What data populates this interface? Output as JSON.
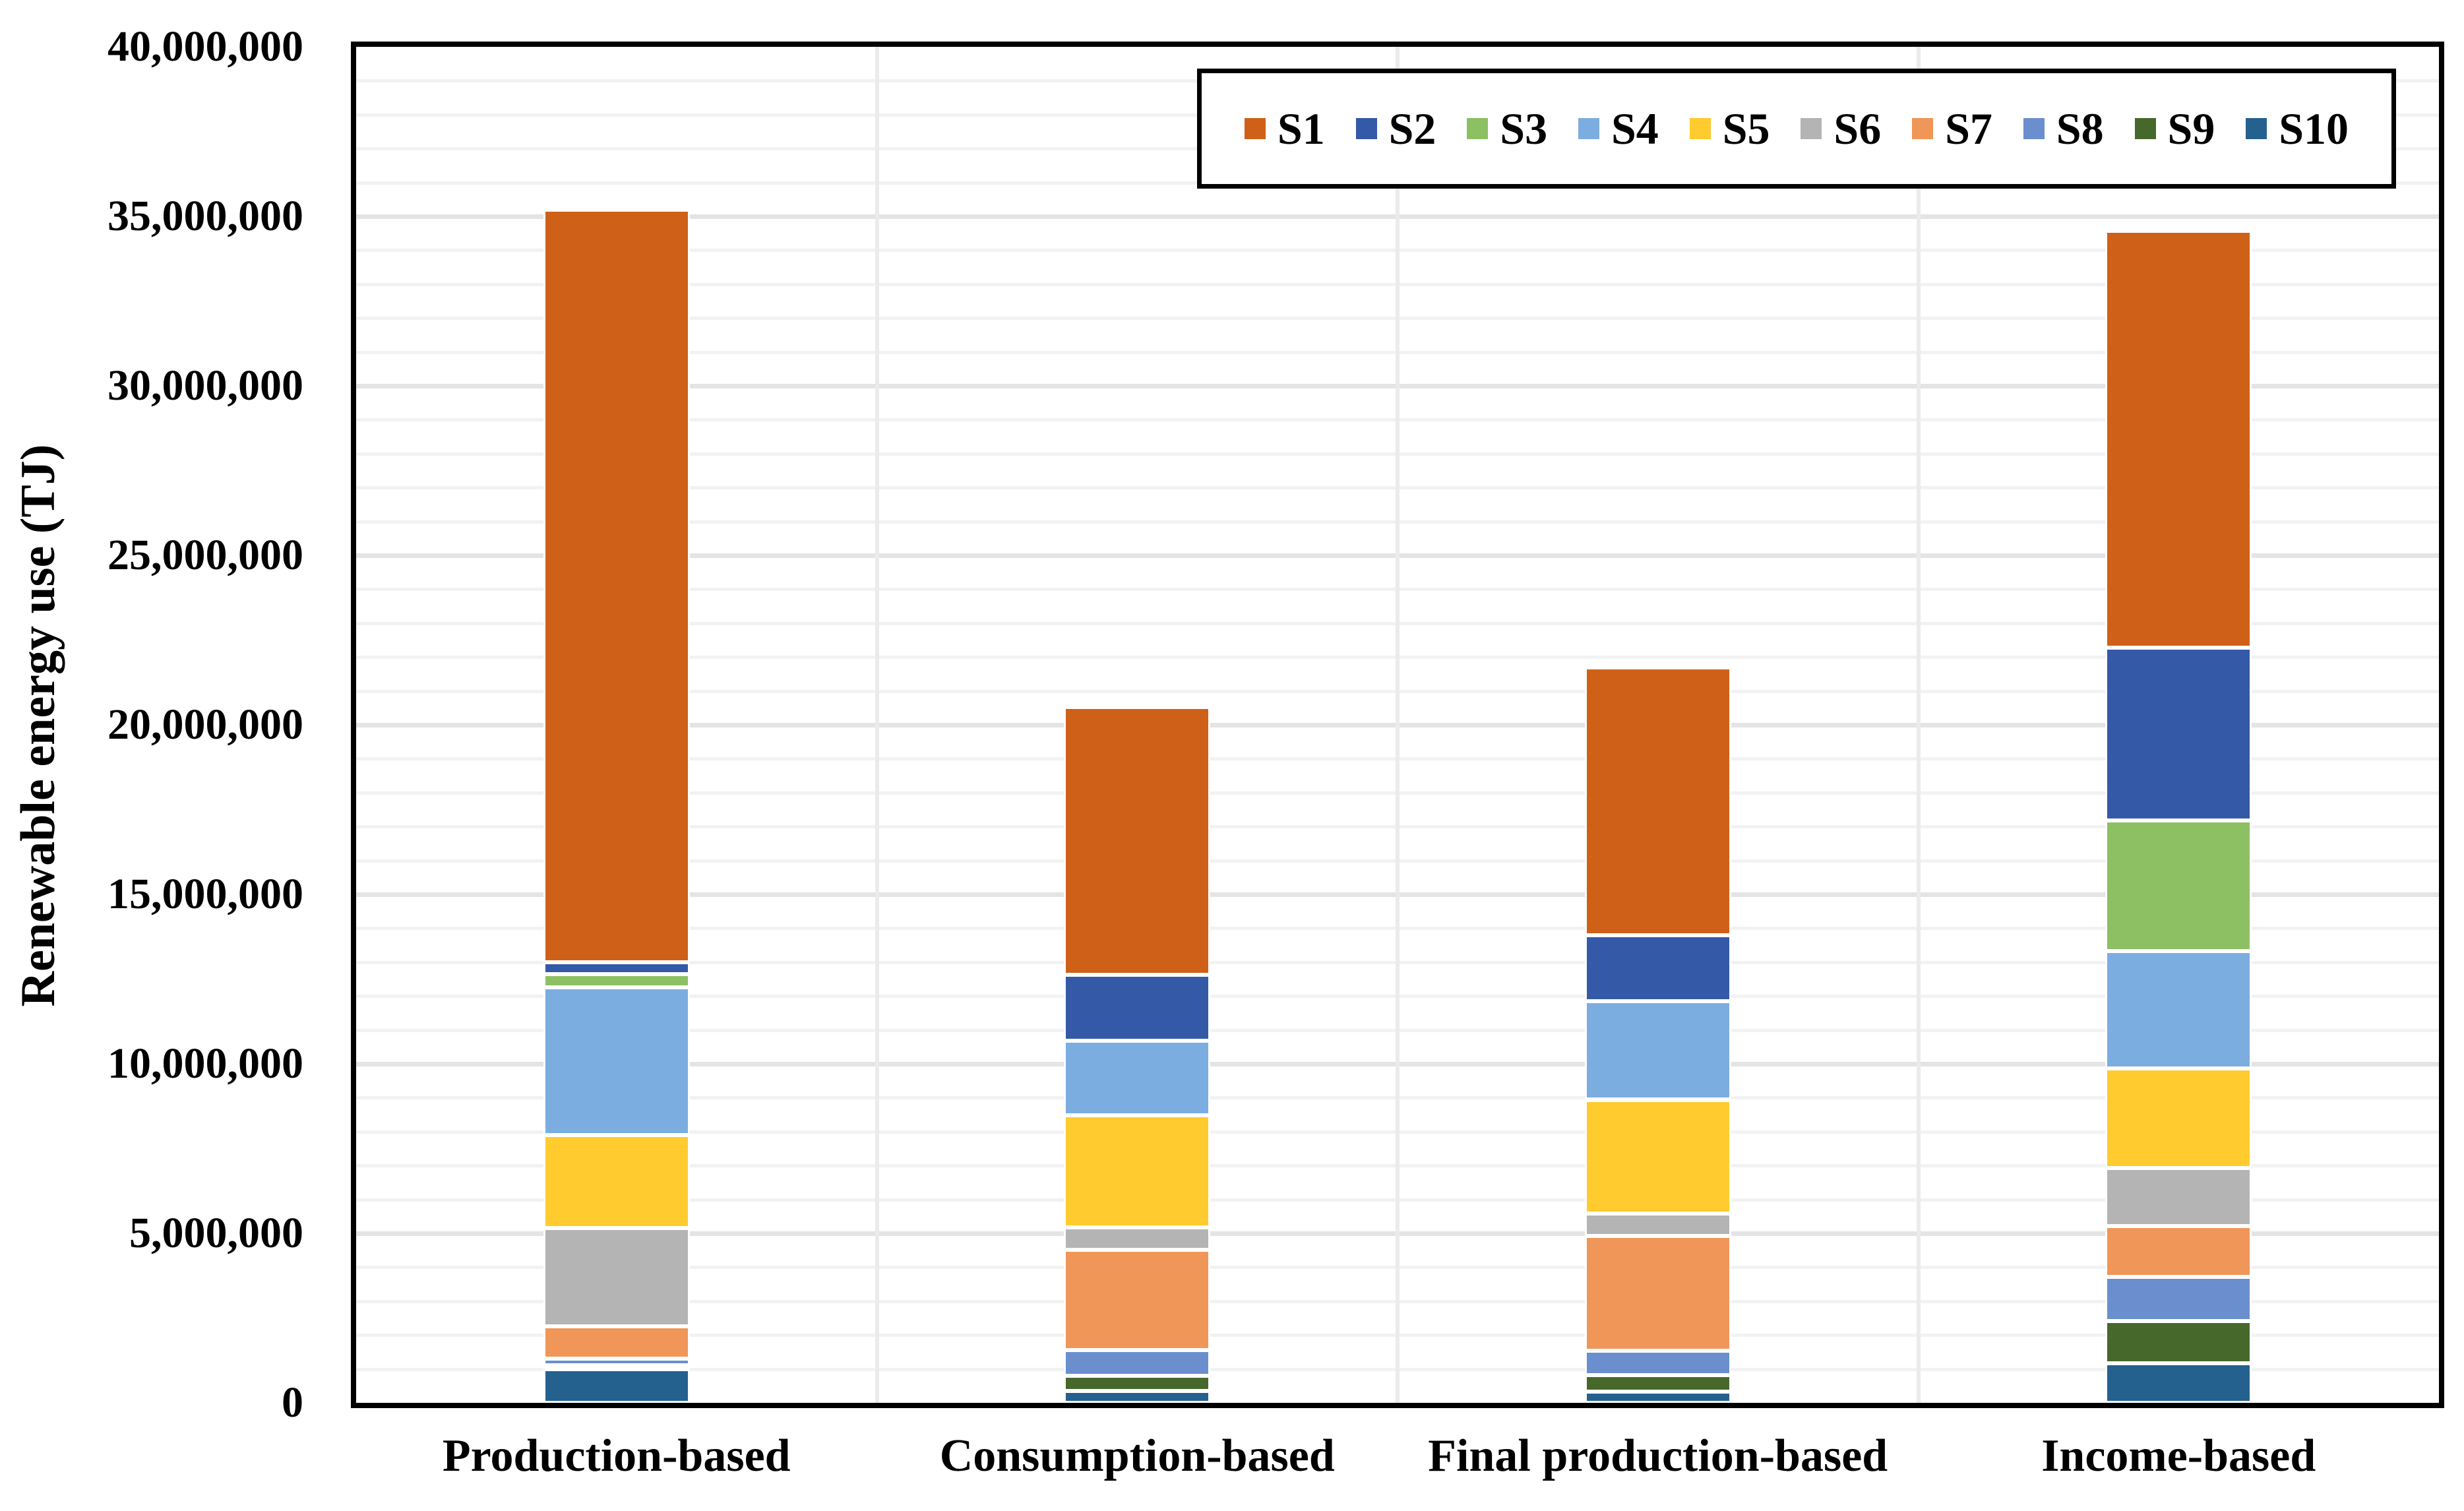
{
  "figure": {
    "y_axis_title": "Renewable energy use (TJ)"
  },
  "chart_data": {
    "type": "bar",
    "stacked": true,
    "title": "",
    "xlabel": "",
    "ylabel": "Renewable energy use (TJ)",
    "categories": [
      "Production-based",
      "Consumption-based",
      "Final production-based",
      "Income-based"
    ],
    "series": [
      {
        "name": "S1",
        "color": "#cf6017",
        "values": [
          22200000,
          7900000,
          7900000,
          12300000
        ]
      },
      {
        "name": "S2",
        "color": "#3459a6",
        "values": [
          350000,
          1950000,
          1950000,
          5100000
        ]
      },
      {
        "name": "S3",
        "color": "#8cc063",
        "values": [
          400000,
          0,
          0,
          3850000
        ]
      },
      {
        "name": "S4",
        "color": "#7cade0",
        "values": [
          4350000,
          2200000,
          2900000,
          3450000
        ]
      },
      {
        "name": "S5",
        "color": "#ffcb2f",
        "values": [
          2750000,
          3300000,
          3350000,
          2950000
        ]
      },
      {
        "name": "S6",
        "color": "#b4b4b4",
        "values": [
          2900000,
          670000,
          660000,
          1700000
        ]
      },
      {
        "name": "S7",
        "color": "#f09658",
        "values": [
          950000,
          2950000,
          3400000,
          1500000
        ]
      },
      {
        "name": "S8",
        "color": "#6b8fce",
        "values": [
          200000,
          760000,
          720000,
          1300000
        ]
      },
      {
        "name": "S9",
        "color": "#46682b",
        "values": [
          100000,
          450000,
          480000,
          1250000
        ]
      },
      {
        "name": "S10",
        "color": "#25618f",
        "values": [
          1000000,
          350000,
          330000,
          1170000
        ]
      }
    ],
    "stack_order_bottom_to_top": [
      "S10",
      "S9",
      "S8",
      "S7",
      "S6",
      "S5",
      "S4",
      "S3",
      "S2",
      "S1"
    ],
    "ylim": [
      0,
      40000000
    ],
    "y_major_tick": 5000000,
    "y_minor_tick": 1000000,
    "y_tick_labels": [
      "0",
      "5,000,000",
      "10,000,000",
      "15,000,000",
      "20,000,000",
      "25,000,000",
      "30,000,000",
      "35,000,000",
      "40,000,000"
    ],
    "grid": {
      "horizontal_minor": true,
      "horizontal_major": true,
      "vertical_category_separators": true
    },
    "legend_position": "top-right-inside",
    "legend_entries": [
      "S1",
      "S2",
      "S3",
      "S4",
      "S5",
      "S6",
      "S7",
      "S8",
      "S9",
      "S10"
    ]
  }
}
